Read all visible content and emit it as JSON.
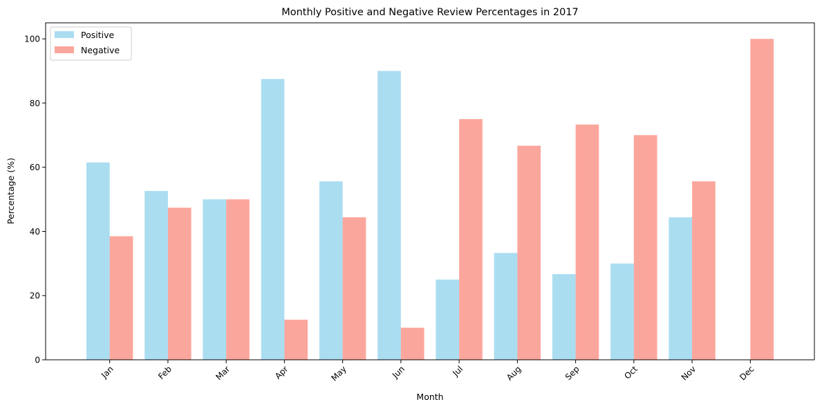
{
  "chart_data": {
    "type": "bar",
    "title": "Monthly Positive and Negative Review Percentages in 2017",
    "xlabel": "Month",
    "ylabel": "Percentage (%)",
    "categories": [
      "Jan",
      "Feb",
      "Mar",
      "Apr",
      "May",
      "Jun",
      "Jul",
      "Aug",
      "Sep",
      "Oct",
      "Nov",
      "Dec"
    ],
    "series": [
      {
        "name": "Positive",
        "color": "#87CEEB",
        "values": [
          61.5,
          52.6,
          50.0,
          87.5,
          55.6,
          90.0,
          25.0,
          33.3,
          26.7,
          30.0,
          44.4,
          0
        ]
      },
      {
        "name": "Negative",
        "color": "#FA8072",
        "values": [
          38.5,
          47.4,
          50.0,
          12.5,
          44.4,
          10.0,
          75.0,
          66.7,
          73.3,
          70.0,
          55.6,
          100.0
        ]
      }
    ],
    "ylim": [
      0,
      105
    ],
    "yticks": [
      0,
      20,
      40,
      60,
      80,
      100
    ],
    "legend_position": "top-left",
    "grid": false
  }
}
